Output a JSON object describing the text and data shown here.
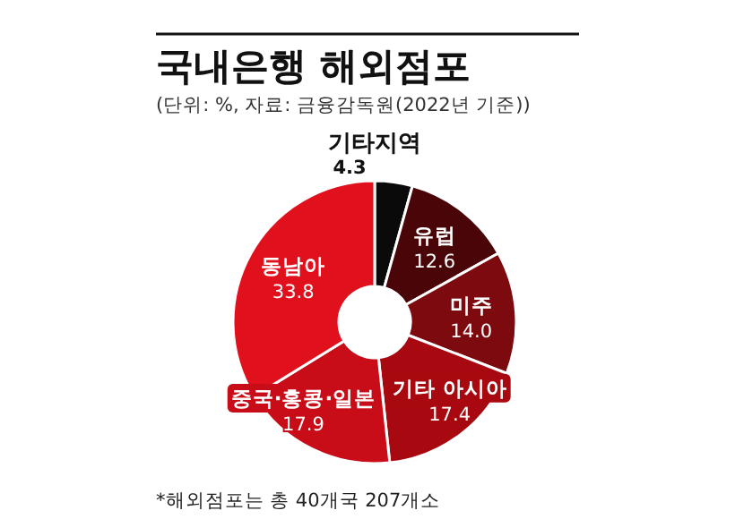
{
  "chart_data": {
    "type": "donut",
    "title": "국내은행 해외점포",
    "subtitle": "(단위: %, 자료: 금융감독원(2022년 기준))",
    "categories": [
      "기타지역",
      "유럽",
      "미주",
      "기타 아시아",
      "중국·홍콩·일본",
      "동남아"
    ],
    "values": [
      4.3,
      12.6,
      14.0,
      17.4,
      17.9,
      33.8
    ],
    "colors": [
      "#0a0a0a",
      "#4a0508",
      "#7d0a0e",
      "#a8080f",
      "#c80d18",
      "#e0101c"
    ],
    "value_labels": [
      "4.3",
      "12.6",
      "14.0",
      "17.4",
      "17.9",
      "33.8"
    ],
    "annotations": [
      "*해외점포는 총 40개국 207개소"
    ]
  }
}
